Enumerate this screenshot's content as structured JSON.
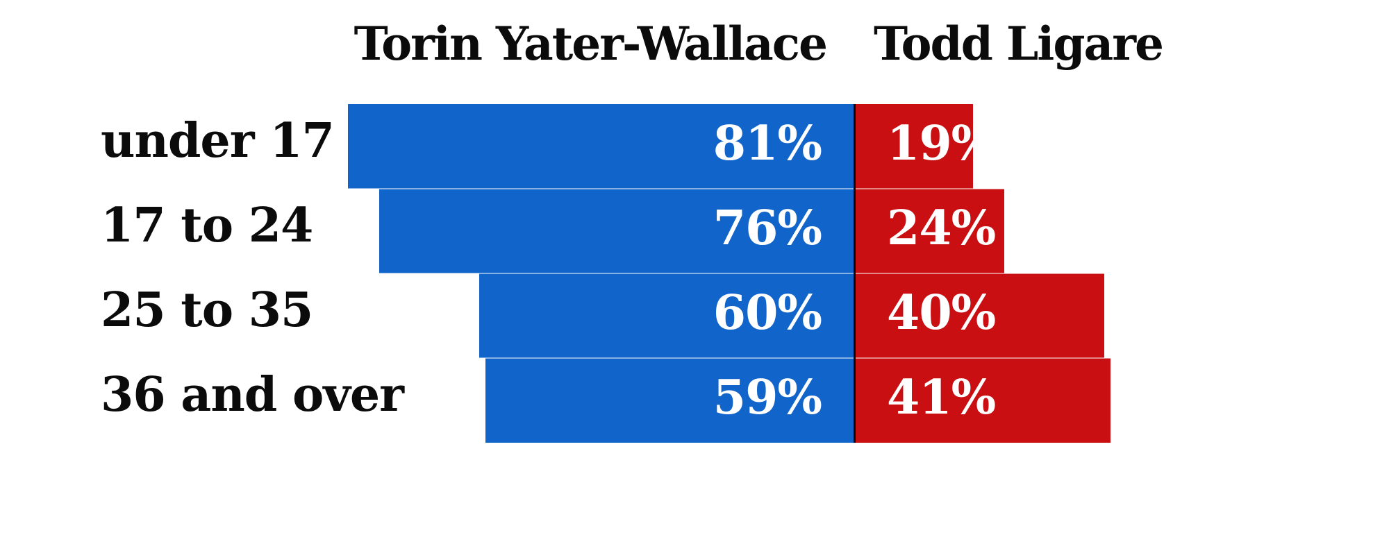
{
  "chart_data": {
    "type": "bar",
    "subtype": "diverging-head-to-head",
    "title": "",
    "categories": [
      "under 17",
      "17 to 24",
      "25 to 35",
      "36 and over"
    ],
    "series": [
      {
        "name": "Torin Yater-Wallace",
        "color": "#1164C9",
        "values": [
          81,
          76,
          60,
          59
        ]
      },
      {
        "name": "Todd Ligare",
        "color": "#C90F12",
        "values": [
          19,
          24,
          40,
          41
        ]
      }
    ],
    "value_labels": [
      [
        "81%",
        "19%"
      ],
      [
        "76%",
        "24%"
      ],
      [
        "60%",
        "40%"
      ],
      [
        "59%",
        "41%"
      ]
    ],
    "value_suffix": "%",
    "xlim": [
      0,
      100
    ],
    "xlabel": "",
    "ylabel": "",
    "legend_position": "top",
    "grid": false,
    "axis_line_color": "#050505",
    "background_color": "#ffffff",
    "text_color": "#0b0b0b",
    "value_text_color": "#ffffff"
  }
}
